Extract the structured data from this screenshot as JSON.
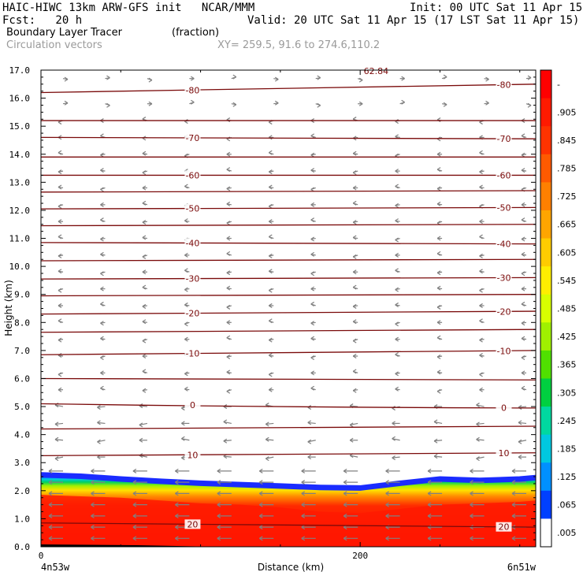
{
  "header": {
    "line1_left": "HAIC-HIWC 13km ARW-GFS init   NCAR/MMM",
    "line1_right": "Init: 00 UTC Sat 11 Apr 15",
    "line2_left": "Fcst:   20 h",
    "line2_right": "Valid: 20 UTC Sat 11 Apr 15 (17 LST Sat 11 Apr 15)",
    "field_name": "Boundary Layer Tracer",
    "field_units": "(fraction)",
    "vector_label": "Circulation vectors",
    "xy_label": "XY= 259.5, 91.6 to 274.6,110.2",
    "top_cut_label": "62.84"
  },
  "chart_data": {
    "type": "heatmap",
    "xlabel": "Distance (km)",
    "ylabel": "Height (km)",
    "xlim": [
      0,
      310
    ],
    "ylim": [
      0,
      17
    ],
    "x_ticks": [
      {
        "value": 0,
        "label": "0"
      },
      {
        "value": 200,
        "label": "200"
      }
    ],
    "x_end_labels": {
      "left": "4n53w",
      "right": "6n51w"
    },
    "y_ticks": [
      "0.0",
      "1.0",
      "2.0",
      "3.0",
      "4.0",
      "5.0",
      "6.0",
      "7.0",
      "8.0",
      "9.0",
      "10.0",
      "11.0",
      "12.0",
      "13.0",
      "14.0",
      "15.0",
      "16.0",
      "17.0"
    ],
    "colorbar": {
      "levels": [
        "-",
        ".905",
        ".845",
        ".785",
        ".725",
        ".665",
        ".605",
        ".545",
        ".485",
        ".425",
        ".365",
        ".305",
        ".245",
        ".185",
        ".125",
        ".065",
        ".005"
      ],
      "colors": [
        "#ff0000",
        "#ff1a00",
        "#ff3300",
        "#ff5a00",
        "#ff8000",
        "#ffa500",
        "#ffcc00",
        "#ffee00",
        "#d8ff00",
        "#a0f000",
        "#50e000",
        "#00d040",
        "#00d8a0",
        "#00c8e0",
        "#0090ff",
        "#0040ff",
        "#ffffff"
      ]
    },
    "tracer_layer": {
      "x_km": [
        0,
        25,
        50,
        75,
        100,
        125,
        150,
        175,
        200,
        225,
        250,
        275,
        300,
        310
      ],
      "top_height_km": [
        2.65,
        2.6,
        2.5,
        2.42,
        2.35,
        2.3,
        2.25,
        2.2,
        2.18,
        2.35,
        2.5,
        2.45,
        2.5,
        2.55
      ],
      "core_top_km": [
        1.85,
        1.8,
        1.75,
        1.65,
        1.55,
        1.5,
        1.4,
        1.25,
        1.2,
        1.35,
        1.5,
        1.55,
        1.6,
        1.65
      ]
    },
    "temperature_contours": {
      "units": "C",
      "lines": [
        {
          "value": 20,
          "label": "20",
          "y_left_km": 0.85,
          "y_right_km": 0.7
        },
        {
          "value": 10,
          "label": "10",
          "y_left_km": 3.25,
          "y_right_km": 3.35
        },
        {
          "value": 5,
          "label": "",
          "y_left_km": 4.2,
          "y_right_km": 4.3
        },
        {
          "value": 0,
          "label": "0",
          "y_left_km": 5.1,
          "y_right_km": 4.95
        },
        {
          "value": -5,
          "label": "",
          "y_left_km": 6.0,
          "y_right_km": 5.95
        },
        {
          "value": -10,
          "label": "-10",
          "y_left_km": 6.85,
          "y_right_km": 7.0
        },
        {
          "value": -15,
          "label": "",
          "y_left_km": 7.65,
          "y_right_km": 7.75
        },
        {
          "value": -20,
          "label": "-20",
          "y_left_km": 8.3,
          "y_right_km": 8.4
        },
        {
          "value": -25,
          "label": "",
          "y_left_km": 8.95,
          "y_right_km": 9.0
        },
        {
          "value": -30,
          "label": "-30",
          "y_left_km": 9.55,
          "y_right_km": 9.6
        },
        {
          "value": -35,
          "label": "",
          "y_left_km": 10.2,
          "y_right_km": 10.25
        },
        {
          "value": -40,
          "label": "-40",
          "y_left_km": 10.85,
          "y_right_km": 10.8
        },
        {
          "value": -45,
          "label": "",
          "y_left_km": 11.45,
          "y_right_km": 11.5
        },
        {
          "value": -50,
          "label": "-50",
          "y_left_km": 12.05,
          "y_right_km": 12.1
        },
        {
          "value": -55,
          "label": "",
          "y_left_km": 12.65,
          "y_right_km": 12.7
        },
        {
          "value": -60,
          "label": "-60",
          "y_left_km": 13.25,
          "y_right_km": 13.25
        },
        {
          "value": -65,
          "label": "",
          "y_left_km": 13.9,
          "y_right_km": 13.9
        },
        {
          "value": -70,
          "label": "-70",
          "y_left_km": 14.6,
          "y_right_km": 14.55
        },
        {
          "value": -75,
          "label": "",
          "y_left_km": 15.2,
          "y_right_km": 15.2
        },
        {
          "value": -80,
          "label": "-80",
          "y_left_km": 16.2,
          "y_right_km": 16.5
        }
      ]
    },
    "vectors": {
      "rows_km": [
        0.3,
        0.7,
        1.1,
        1.5,
        1.9,
        2.3,
        2.7,
        3.2,
        3.8,
        4.4,
        5.0,
        5.6,
        6.2,
        6.8,
        7.4,
        8.0,
        8.6,
        9.2,
        9.8,
        10.4,
        11.0,
        11.6,
        12.2,
        12.8,
        13.4,
        14.0,
        14.6,
        15.2,
        15.8,
        16.7
      ],
      "color": "#808080"
    }
  }
}
